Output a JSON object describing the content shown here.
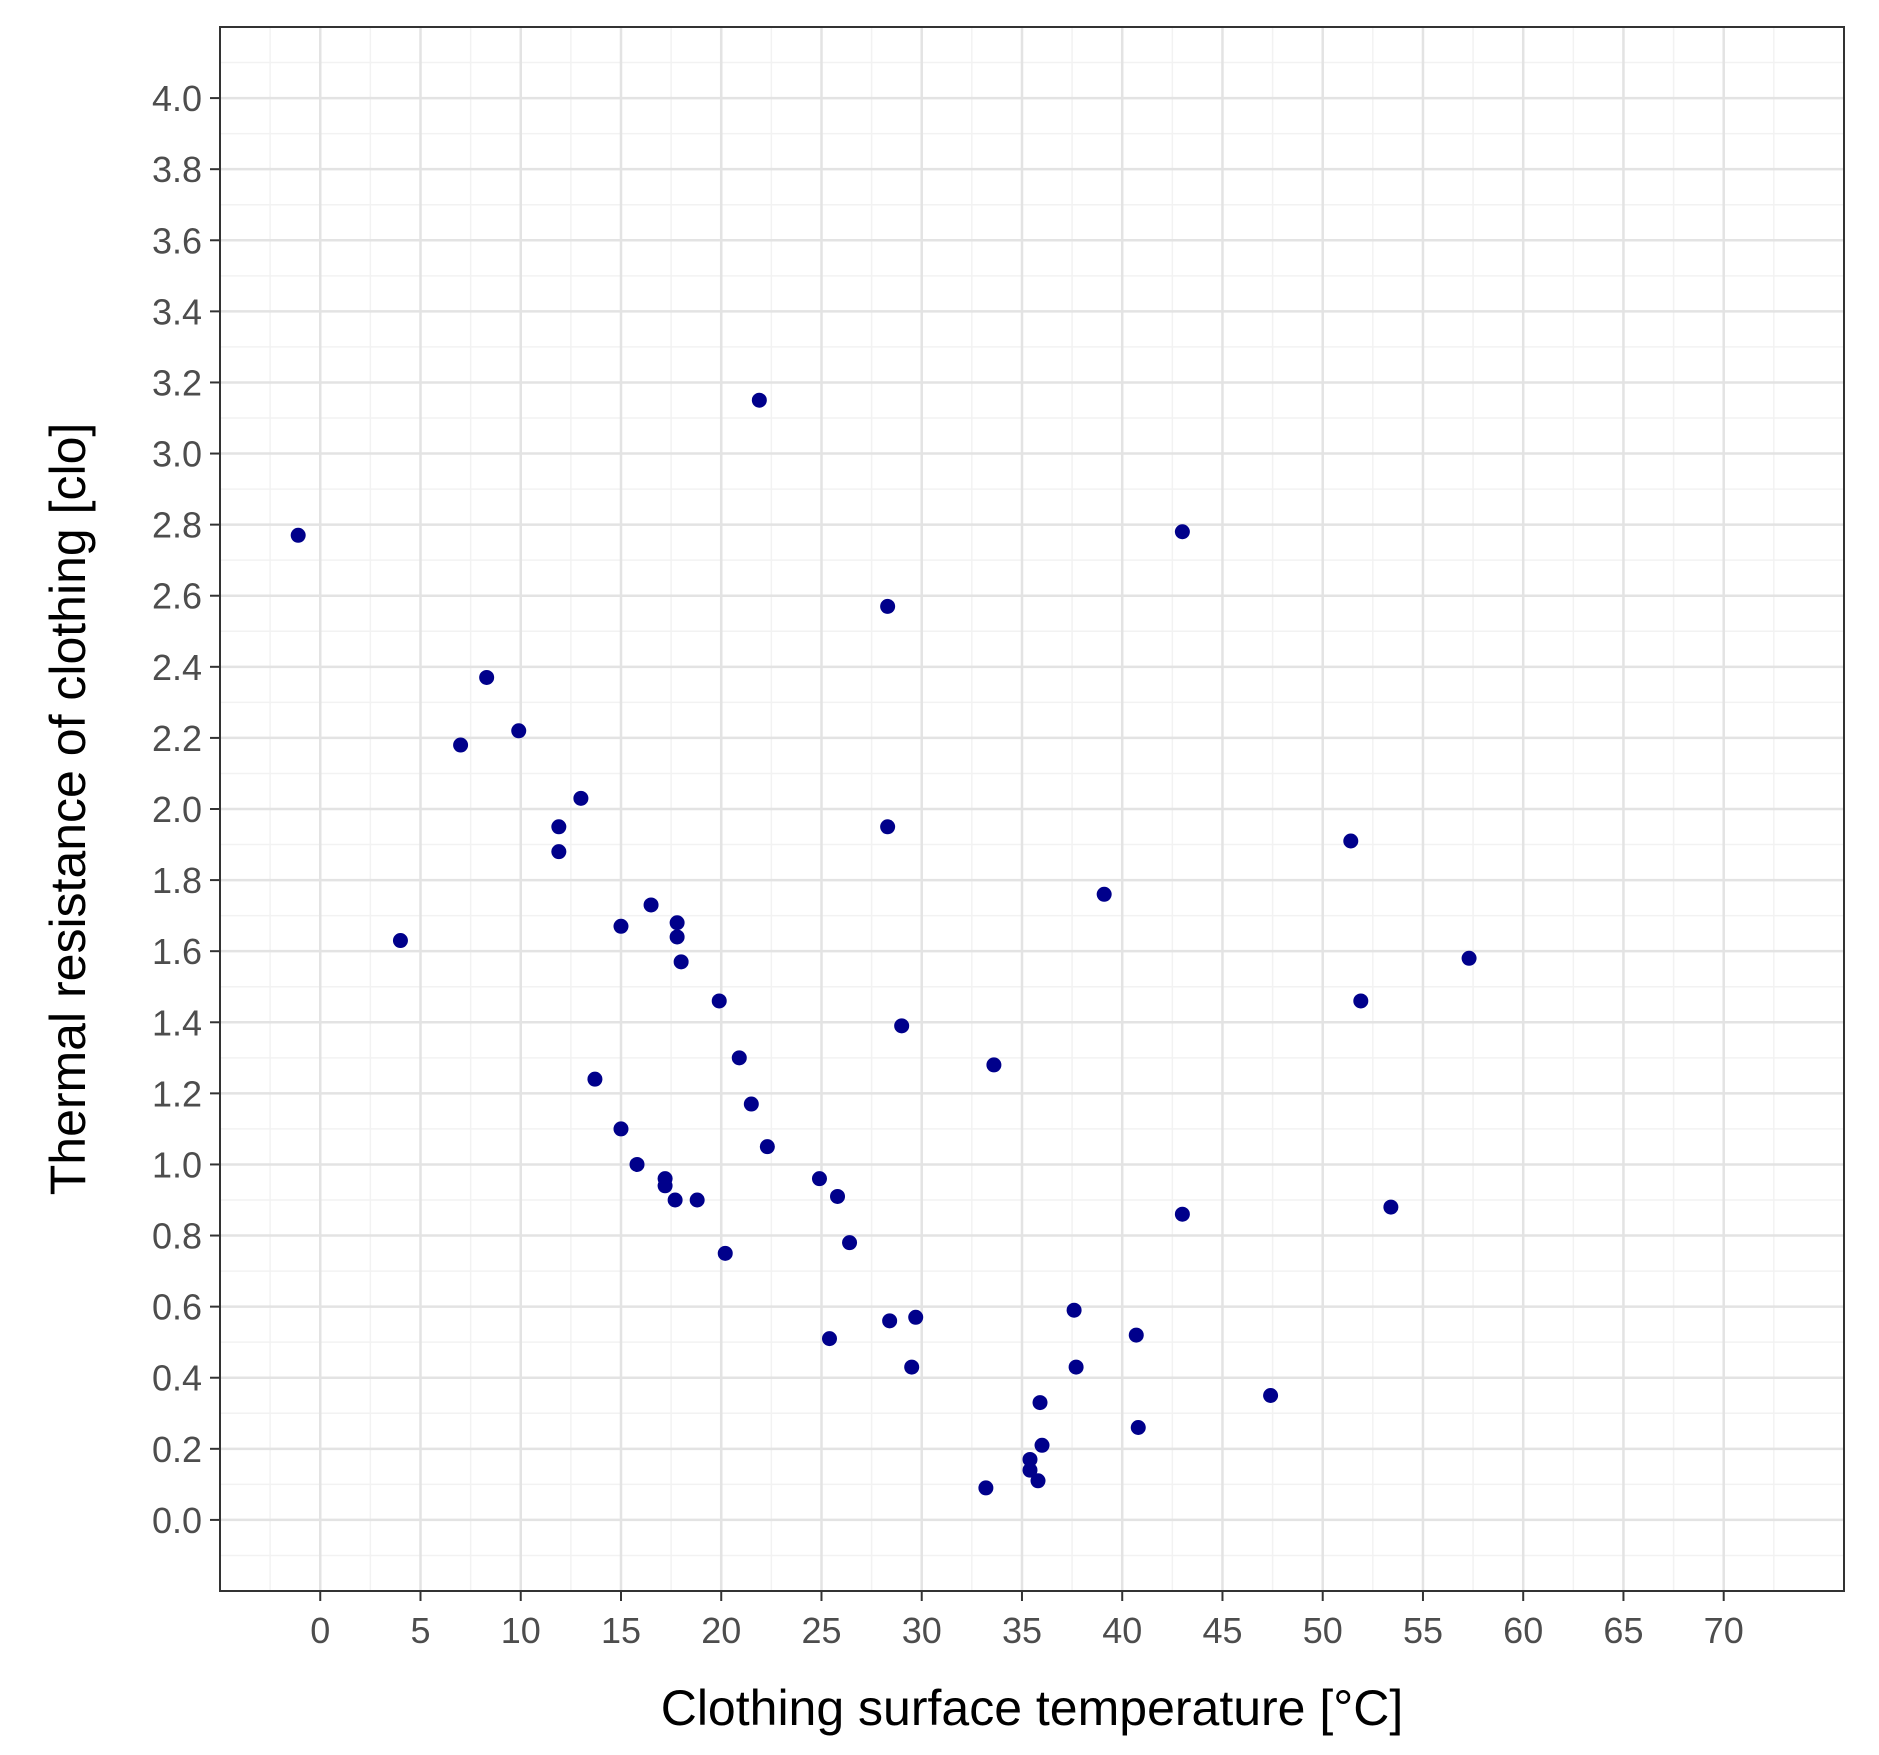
{
  "chart_data": {
    "type": "scatter",
    "title": "",
    "xlabel": "Clothing surface temperature [°C]",
    "ylabel": "Thermal resistance of clothing [clo]",
    "xlim": [
      -5,
      76
    ],
    "ylim": [
      -0.2,
      4.2
    ],
    "x_ticks": [
      0,
      5,
      10,
      15,
      20,
      25,
      30,
      35,
      40,
      45,
      50,
      55,
      60,
      65,
      70
    ],
    "y_ticks": [
      0.0,
      0.2,
      0.4,
      0.6,
      0.8,
      1.0,
      1.2,
      1.4,
      1.6,
      1.8,
      2.0,
      2.2,
      2.4,
      2.6,
      2.8,
      3.0,
      3.2,
      3.4,
      3.6,
      3.8,
      4.0
    ],
    "x_tick_labels": [
      "0",
      "5",
      "10",
      "15",
      "20",
      "25",
      "30",
      "35",
      "40",
      "45",
      "50",
      "55",
      "60",
      "65",
      "70"
    ],
    "y_tick_labels": [
      "0.0",
      "0.2",
      "0.4",
      "0.6",
      "0.8",
      "1.0",
      "1.2",
      "1.4",
      "1.6",
      "1.8",
      "2.0",
      "2.2",
      "2.4",
      "2.6",
      "2.8",
      "3.0",
      "3.2",
      "3.4",
      "3.6",
      "3.8",
      "4.0"
    ],
    "grid": true,
    "theme": "bw",
    "point_color": "#00008b",
    "series": [
      {
        "points": [
          [
            -1.1,
            2.77
          ],
          [
            4.0,
            1.63
          ],
          [
            7.0,
            2.18
          ],
          [
            8.3,
            2.37
          ],
          [
            9.9,
            2.22
          ],
          [
            11.9,
            1.95
          ],
          [
            11.9,
            1.88
          ],
          [
            13.0,
            2.03
          ],
          [
            13.7,
            1.24
          ],
          [
            15.0,
            1.67
          ],
          [
            15.0,
            1.1
          ],
          [
            15.8,
            1.0
          ],
          [
            16.5,
            1.73
          ],
          [
            17.2,
            0.96
          ],
          [
            17.2,
            0.94
          ],
          [
            17.7,
            0.9
          ],
          [
            17.8,
            1.68
          ],
          [
            17.8,
            1.64
          ],
          [
            18.0,
            1.57
          ],
          [
            18.8,
            0.9
          ],
          [
            19.9,
            1.46
          ],
          [
            20.2,
            0.75
          ],
          [
            20.9,
            1.3
          ],
          [
            21.5,
            1.17
          ],
          [
            21.9,
            3.15
          ],
          [
            22.3,
            1.05
          ],
          [
            24.9,
            0.96
          ],
          [
            25.4,
            0.51
          ],
          [
            25.8,
            0.91
          ],
          [
            26.4,
            0.78
          ],
          [
            28.3,
            2.57
          ],
          [
            28.3,
            1.95
          ],
          [
            28.4,
            0.56
          ],
          [
            29.0,
            1.39
          ],
          [
            29.5,
            0.43
          ],
          [
            29.7,
            0.57
          ],
          [
            33.2,
            0.09
          ],
          [
            33.6,
            1.28
          ],
          [
            35.4,
            0.17
          ],
          [
            35.4,
            0.14
          ],
          [
            35.8,
            0.11
          ],
          [
            35.9,
            0.33
          ],
          [
            36.0,
            0.21
          ],
          [
            37.6,
            0.59
          ],
          [
            37.7,
            0.43
          ],
          [
            39.1,
            1.76
          ],
          [
            40.7,
            0.52
          ],
          [
            40.8,
            0.26
          ],
          [
            43.0,
            2.78
          ],
          [
            43.0,
            0.86
          ],
          [
            47.4,
            0.35
          ],
          [
            51.4,
            1.91
          ],
          [
            51.9,
            1.46
          ],
          [
            53.4,
            0.88
          ],
          [
            57.3,
            1.58
          ]
        ]
      }
    ]
  }
}
